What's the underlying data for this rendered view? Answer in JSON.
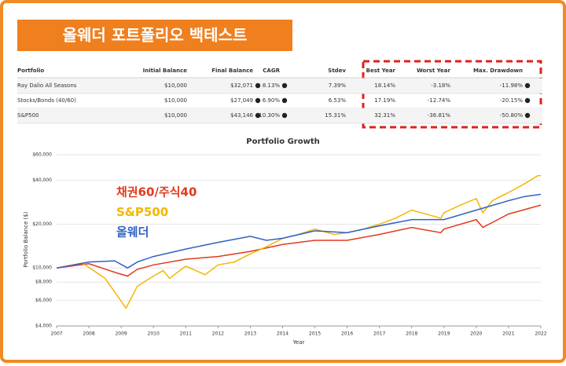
{
  "header": {
    "title": "올웨더 포트폴리오 백테스트"
  },
  "table": {
    "columns": [
      "Portfolio",
      "Initial Balance",
      "Final Balance",
      "CAGR",
      "Stdev",
      "Best Year",
      "Worst Year",
      "Max. Drawdown"
    ],
    "rows": [
      [
        "Ray Dalio All Seasons",
        "$10,000",
        "$32,071",
        "8.13%",
        "7.39%",
        "18.14%",
        "-3.18%",
        "-11.98%"
      ],
      [
        "Stocks/Bonds (40/60)",
        "$10,000",
        "$27,049",
        "6.90%",
        "6.53%",
        "17.19%",
        "-12.74%",
        "-20.15%"
      ],
      [
        "S&P500",
        "$10,000",
        "$43,146",
        "10.30%",
        "15.31%",
        "32.31%",
        "-36.81%",
        "-50.80%"
      ]
    ]
  },
  "chart_data": {
    "type": "line",
    "title": "Portfolio Growth",
    "x_label": "Year",
    "y_label": "Portfolio Balance ($)",
    "log_scale": true,
    "grid": true,
    "xlim": [
      2007,
      2022
    ],
    "xticks": [
      2007,
      2008,
      2009,
      2010,
      2011,
      2012,
      2013,
      2014,
      2015,
      2016,
      2017,
      2018,
      2019,
      2020,
      2021,
      2022
    ],
    "ylim": [
      4000,
      60000
    ],
    "yticks": [
      {
        "value": 4000,
        "label": "$4,000"
      },
      {
        "value": 6000,
        "label": "$6,000"
      },
      {
        "value": 8000,
        "label": "$8,000"
      },
      {
        "value": 10000,
        "label": "$10,000"
      },
      {
        "value": 20000,
        "label": "$20,000"
      },
      {
        "value": 40000,
        "label": "$40,000"
      },
      {
        "value": 60000,
        "label": "$60,000"
      }
    ],
    "series": [
      {
        "name": "채권60/주식40",
        "color": "#e03a1e",
        "x": [
          2007,
          2008,
          2008.9,
          2009.2,
          2009.5,
          2010,
          2011,
          2012,
          2013,
          2014,
          2015,
          2016,
          2017,
          2018,
          2018.9,
          2019,
          2020,
          2020.2,
          2021,
          2022
        ],
        "values": [
          10000,
          10700,
          9200,
          8800,
          9800,
          10500,
          11500,
          12000,
          13000,
          14500,
          15500,
          15500,
          17000,
          19000,
          17500,
          18500,
          21500,
          19000,
          23500,
          27049
        ]
      },
      {
        "name": "S&P500",
        "color": "#f2b705",
        "x": [
          2007,
          2007.8,
          2008.5,
          2009.15,
          2009.5,
          2010,
          2010.3,
          2010.5,
          2011,
          2011.6,
          2012,
          2012.5,
          2013,
          2013.5,
          2014,
          2014.5,
          2015,
          2015.6,
          2016,
          2016.5,
          2017,
          2017.5,
          2018,
          2018.9,
          2019,
          2019.5,
          2020,
          2020.2,
          2020.5,
          2021,
          2021.5,
          2021.9,
          2022
        ],
        "values": [
          10000,
          10800,
          8500,
          5300,
          7500,
          8800,
          9600,
          8500,
          10300,
          9000,
          10500,
          11000,
          12500,
          14000,
          16000,
          17000,
          18500,
          17000,
          17500,
          18500,
          20000,
          22000,
          25000,
          22000,
          24000,
          27000,
          30000,
          24000,
          29000,
          33000,
          38000,
          43000,
          43146
        ]
      },
      {
        "name": "올웨더",
        "color": "#2f62c4",
        "x": [
          2007,
          2008,
          2008.8,
          2009.2,
          2009.5,
          2010,
          2011,
          2012,
          2013,
          2013.5,
          2014,
          2015,
          2016,
          2017,
          2018,
          2019,
          2020,
          2021,
          2021.5,
          2022
        ],
        "values": [
          10000,
          11000,
          11200,
          10000,
          11000,
          12000,
          13500,
          15000,
          16500,
          15500,
          16000,
          18000,
          17500,
          19500,
          21500,
          21500,
          25000,
          29000,
          31000,
          32071
        ]
      }
    ]
  }
}
